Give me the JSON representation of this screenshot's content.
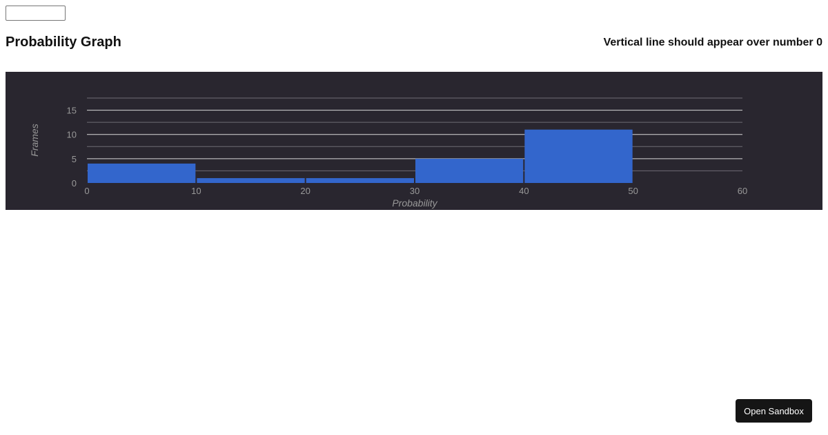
{
  "input": {
    "value": ""
  },
  "header": {
    "title": "Probability Graph",
    "hint": "Vertical line should appear over number 0"
  },
  "chart_data": {
    "type": "bar",
    "bins": [
      {
        "x0": 0,
        "x1": 10,
        "value": 4
      },
      {
        "x0": 10,
        "x1": 20,
        "value": 1
      },
      {
        "x0": 20,
        "x1": 30,
        "value": 1
      },
      {
        "x0": 30,
        "x1": 40,
        "value": 5
      },
      {
        "x0": 40,
        "x1": 50,
        "value": 11
      }
    ],
    "xlabel": "Probability",
    "ylabel": "Frames",
    "xlim": [
      0,
      60
    ],
    "ylim": [
      0,
      17.5
    ],
    "xticks": [
      0,
      10,
      20,
      30,
      40,
      50,
      60
    ],
    "yticks": [
      0,
      5,
      10,
      15
    ],
    "grid": true,
    "colors": {
      "background": "#29262f",
      "bar": "#3366cc",
      "gridline_major": "#d9d9d9",
      "gridline_minor": "#6f6c75",
      "text": "#999999"
    }
  },
  "sandbox_button": {
    "label": "Open Sandbox"
  }
}
